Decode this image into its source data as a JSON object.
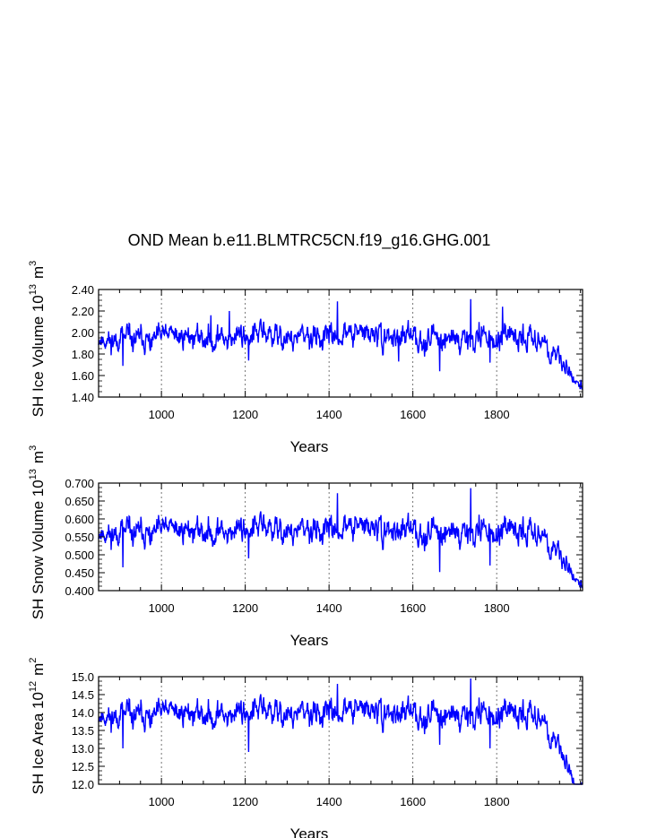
{
  "title": "OND Mean b.e11.BLMTRC5CN.f19_g16.GHG.001",
  "colors": {
    "series": "#0000ff",
    "axis": "#000000",
    "grid": "#555555"
  },
  "chart_data": [
    {
      "type": "line",
      "name": "sh-ice-volume",
      "ylabel_text": "SH Ice Volume 10",
      "ylabel_exp": "13",
      "ylabel_unit": "m",
      "ylabel_unit_exp": "3",
      "xlabel": "Years",
      "xlim": [
        850,
        2005
      ],
      "ylim": [
        1.4,
        2.4
      ],
      "x_ticks": [
        1000,
        1200,
        1400,
        1600,
        1800
      ],
      "x_tick_labels": [
        "1000",
        "1200",
        "1400",
        "1600",
        "1800"
      ],
      "y_ticks": [
        1.4,
        1.6,
        1.8,
        2.0,
        2.2,
        2.4
      ],
      "y_tick_labels": [
        "1.40",
        "1.60",
        "1.80",
        "2.00",
        "2.20",
        "2.40"
      ],
      "y_minor_step": 0.05,
      "base": 1.95,
      "amplitude": 0.085,
      "end_value": 1.57,
      "seed": 11,
      "anomalies": [
        {
          "x": 908,
          "y": 1.69
        },
        {
          "x": 1118,
          "y": 2.16
        },
        {
          "x": 1162,
          "y": 2.2
        },
        {
          "x": 1208,
          "y": 1.74
        },
        {
          "x": 1420,
          "y": 2.29
        },
        {
          "x": 1566,
          "y": 1.73
        },
        {
          "x": 1664,
          "y": 1.64
        },
        {
          "x": 1738,
          "y": 2.31
        },
        {
          "x": 1784,
          "y": 1.72
        },
        {
          "x": 1814,
          "y": 2.24
        },
        {
          "x": 1956,
          "y": 1.64
        },
        {
          "x": 2001,
          "y": 1.56
        }
      ],
      "decline_start": 1900
    },
    {
      "type": "line",
      "name": "sh-snow-volume",
      "ylabel_text": "SH Snow Volume 10",
      "ylabel_exp": "13",
      "ylabel_unit": "m",
      "ylabel_unit_exp": "3",
      "xlabel": "Years",
      "xlim": [
        850,
        2005
      ],
      "ylim": [
        0.4,
        0.7
      ],
      "x_ticks": [
        1000,
        1200,
        1400,
        1600,
        1800
      ],
      "x_tick_labels": [
        "1000",
        "1200",
        "1400",
        "1600",
        "1800"
      ],
      "y_ticks": [
        0.4,
        0.45,
        0.5,
        0.55,
        0.6,
        0.65,
        0.7
      ],
      "y_tick_labels": [
        "0.400",
        "0.450",
        "0.500",
        "0.550",
        "0.600",
        "0.650",
        "0.700"
      ],
      "y_minor_step": 0.0125,
      "base": 0.565,
      "amplitude": 0.027,
      "end_value": 0.44,
      "seed": 11,
      "anomalies": [
        {
          "x": 908,
          "y": 0.465
        },
        {
          "x": 1208,
          "y": 0.49
        },
        {
          "x": 1420,
          "y": 0.672
        },
        {
          "x": 1664,
          "y": 0.452
        },
        {
          "x": 1738,
          "y": 0.686
        },
        {
          "x": 1784,
          "y": 0.47
        },
        {
          "x": 1956,
          "y": 0.46
        },
        {
          "x": 2001,
          "y": 0.43
        }
      ],
      "decline_start": 1900
    },
    {
      "type": "line",
      "name": "sh-ice-area",
      "ylabel_text": "SH Ice Area 10",
      "ylabel_exp": "12",
      "ylabel_unit": "m",
      "ylabel_unit_exp": "2",
      "xlabel": "Years",
      "xlim": [
        850,
        2005
      ],
      "ylim": [
        12.0,
        15.0
      ],
      "x_ticks": [
        1000,
        1200,
        1400,
        1600,
        1800
      ],
      "x_tick_labels": [
        "1000",
        "1200",
        "1400",
        "1600",
        "1800"
      ],
      "y_ticks": [
        12.0,
        12.5,
        13.0,
        13.5,
        14.0,
        14.5,
        15.0
      ],
      "y_tick_labels": [
        "12.0",
        "12.5",
        "13.0",
        "13.5",
        "14.0",
        "14.5",
        "15.0"
      ],
      "y_minor_step": 0.125,
      "base": 13.95,
      "amplitude": 0.27,
      "end_value": 12.1,
      "seed": 11,
      "anomalies": [
        {
          "x": 908,
          "y": 13.0
        },
        {
          "x": 1208,
          "y": 12.9
        },
        {
          "x": 1420,
          "y": 14.8
        },
        {
          "x": 1664,
          "y": 13.1
        },
        {
          "x": 1738,
          "y": 14.95
        },
        {
          "x": 1784,
          "y": 13.0
        },
        {
          "x": 1956,
          "y": 12.9
        },
        {
          "x": 2003,
          "y": 12.05
        }
      ],
      "decline_start": 1900
    }
  ]
}
